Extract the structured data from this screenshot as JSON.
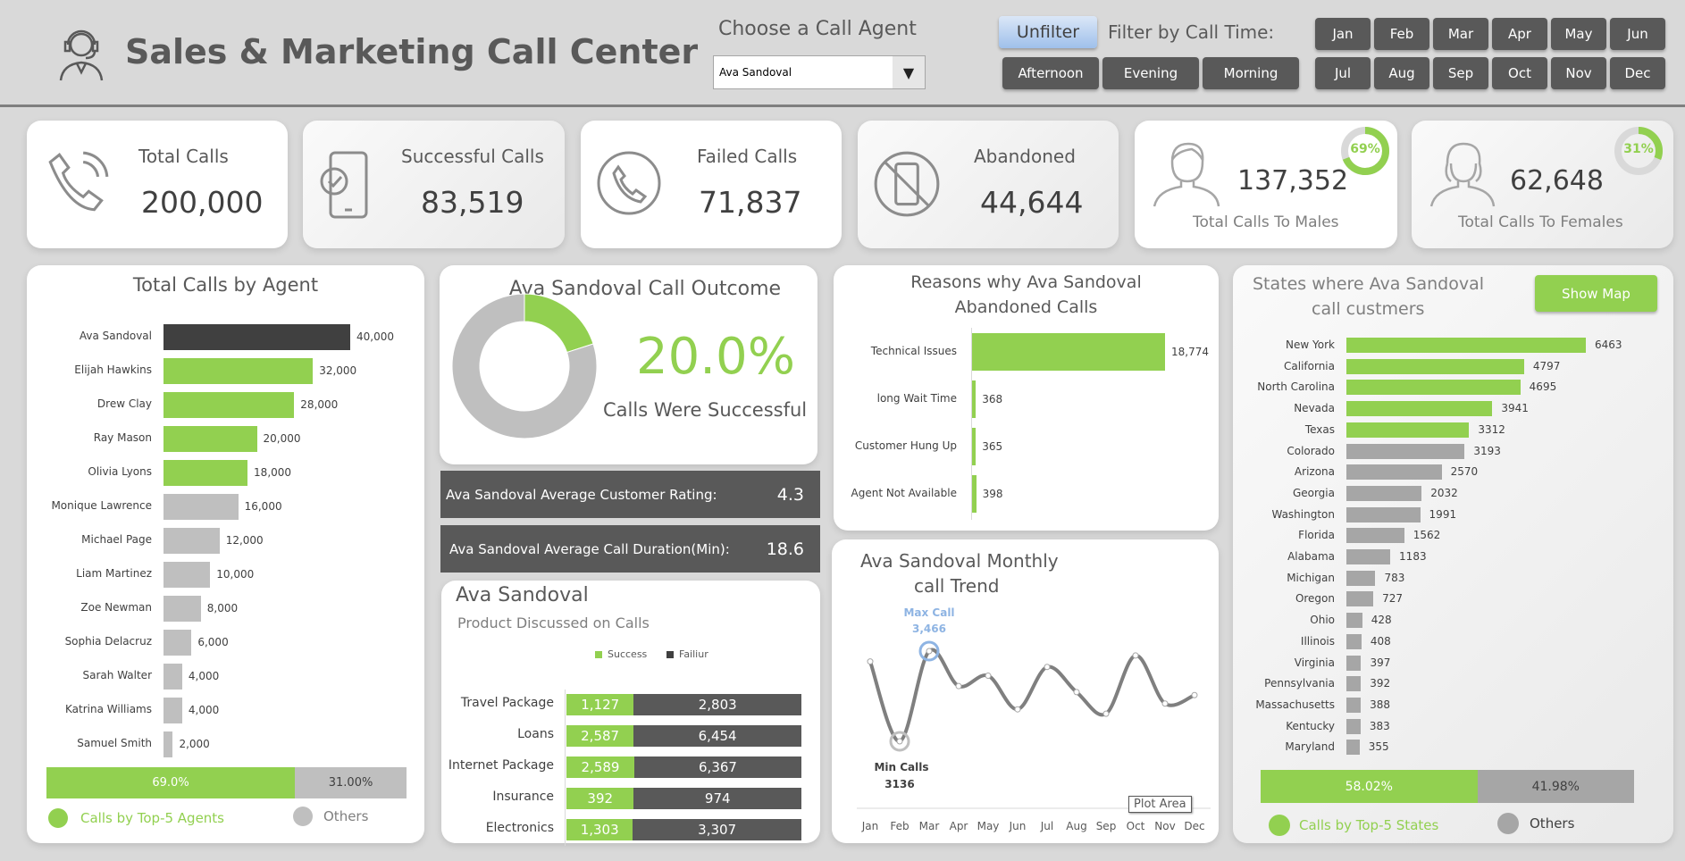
{
  "header": {
    "title": "Sales & Marketing Call Center",
    "agent_label": "Choose a Call Agent",
    "agent_selected": "Ava Sandoval",
    "unfilter": "Unfilter",
    "filter_label": "Filter by Call Time:",
    "times": [
      "Afternoon",
      "Evening",
      "Morning"
    ],
    "months": [
      "Jan",
      "Feb",
      "Mar",
      "Apr",
      "May",
      "Jun",
      "Jul",
      "Aug",
      "Sep",
      "Oct",
      "Nov",
      "Dec"
    ]
  },
  "kpis": {
    "total": {
      "label": "Total Calls",
      "value": "200,000"
    },
    "success": {
      "label": "Successful Calls",
      "value": "83,519"
    },
    "failed": {
      "label": "Failed Calls",
      "value": "71,837"
    },
    "abandoned": {
      "label": "Abandoned",
      "value": "44,644"
    },
    "males": {
      "label": "Total Calls To Males",
      "value": "137,352",
      "pct": "69%",
      "fraction": 0.69
    },
    "females": {
      "label": "Total Calls To Females",
      "value": "62,648",
      "pct": "31%",
      "fraction": 0.31
    }
  },
  "colors": {
    "green": "#92d050",
    "dark": "#404040",
    "gray": "#bfbfbf",
    "panel": "#595959"
  },
  "agents": {
    "title": "Total Calls by Agent",
    "items": [
      [
        "Ava Sandoval",
        40000,
        "40,000"
      ],
      [
        "Elijah Hawkins",
        32000,
        "32,000"
      ],
      [
        "Drew Clay",
        28000,
        "28,000"
      ],
      [
        "Ray Mason",
        20000,
        "20,000"
      ],
      [
        "Olivia Lyons",
        18000,
        "18,000"
      ],
      [
        "Monique Lawrence",
        16000,
        "16,000"
      ],
      [
        "Michael Page",
        12000,
        "12,000"
      ],
      [
        "Liam Martinez",
        10000,
        "10,000"
      ],
      [
        "Zoe Newman",
        8000,
        "8,000"
      ],
      [
        "Sophia Delacruz",
        6000,
        "6,000"
      ],
      [
        "Sarah Walter",
        4000,
        "4,000"
      ],
      [
        "Katrina Williams",
        4000,
        "4,000"
      ],
      [
        "Samuel Smith",
        2000,
        "2,000"
      ]
    ],
    "top_pct": "69.0%",
    "other_pct": "31.00%",
    "top_fraction": 0.69,
    "legend_top": "Calls by Top-5 Agents",
    "legend_other": "Others"
  },
  "outcome": {
    "title": "Ava Sandoval Call Outcome",
    "pct": "20.0%",
    "fraction": 0.2,
    "caption": "Calls Were Successful"
  },
  "rating": {
    "label": "Ava Sandoval Average Customer Rating:",
    "value": "4.3"
  },
  "duration": {
    "label": "Ava Sandoval Average Call Duration(Min):",
    "value": "18.6"
  },
  "products": {
    "title": "Ava Sandoval",
    "subtitle": "Product Discussed on Calls",
    "legend": [
      "Success",
      "Failiur"
    ],
    "items": [
      [
        "Travel Package",
        1127,
        "1,127",
        2803,
        "2,803"
      ],
      [
        "Loans",
        2587,
        "2,587",
        6454,
        "6,454"
      ],
      [
        "Internet Package",
        2589,
        "2,589",
        6367,
        "6,367"
      ],
      [
        "Insurance",
        392,
        "392",
        974,
        "974"
      ],
      [
        "Electronics",
        1303,
        "1,303",
        3307,
        "3,307"
      ]
    ]
  },
  "reasons": {
    "title1": "Reasons why Ava Sandoval",
    "title2": "Abandoned Calls",
    "items": [
      [
        "Technical Issues",
        18774,
        "18,774"
      ],
      [
        "long Wait Time",
        368,
        "368"
      ],
      [
        "Customer Hung Up",
        365,
        "365"
      ],
      [
        "Agent Not Available",
        398,
        "398"
      ]
    ]
  },
  "chart_data": {
    "type": "line",
    "title": "Ava Sandoval Monthly call Trend",
    "categories": [
      "Jan",
      "Feb",
      "Mar",
      "Apr",
      "May",
      "Jun",
      "Jul",
      "Aug",
      "Sep",
      "Oct",
      "Nov",
      "Dec"
    ],
    "values": [
      3428,
      3136,
      3466,
      3338,
      3376,
      3253,
      3408,
      3316,
      3237,
      3450,
      3274,
      3305
    ],
    "max_label": "Max Call",
    "max_value": "3,466",
    "min_label": "Min Calls",
    "min_value": "3136",
    "tooltip": "Plot Area"
  },
  "states": {
    "title1": "States where Ava Sandoval",
    "title2": "call custmers",
    "show_map": "Show Map",
    "items": [
      [
        "New York",
        6463
      ],
      [
        "California",
        4797
      ],
      [
        "North Carolina",
        4695
      ],
      [
        "Nevada",
        3941
      ],
      [
        "Texas",
        3312
      ],
      [
        "Colorado",
        3193
      ],
      [
        "Arizona",
        2570
      ],
      [
        "Georgia",
        2032
      ],
      [
        "Washington",
        1991
      ],
      [
        "Florida",
        1562
      ],
      [
        "Alabama",
        1183
      ],
      [
        "Michigan",
        783
      ],
      [
        "Oregon",
        727
      ],
      [
        "Ohio",
        428
      ],
      [
        "Illinois",
        408
      ],
      [
        "Virginia",
        397
      ],
      [
        "Pennsylvania",
        392
      ],
      [
        "Massachusetts",
        388
      ],
      [
        "Kentucky",
        383
      ],
      [
        "Maryland",
        355
      ]
    ],
    "top_pct": "58.02%",
    "other_pct": "41.98%",
    "top_fraction": 0.5802,
    "legend_top": "Calls by Top-5 States",
    "legend_other": "Others"
  }
}
